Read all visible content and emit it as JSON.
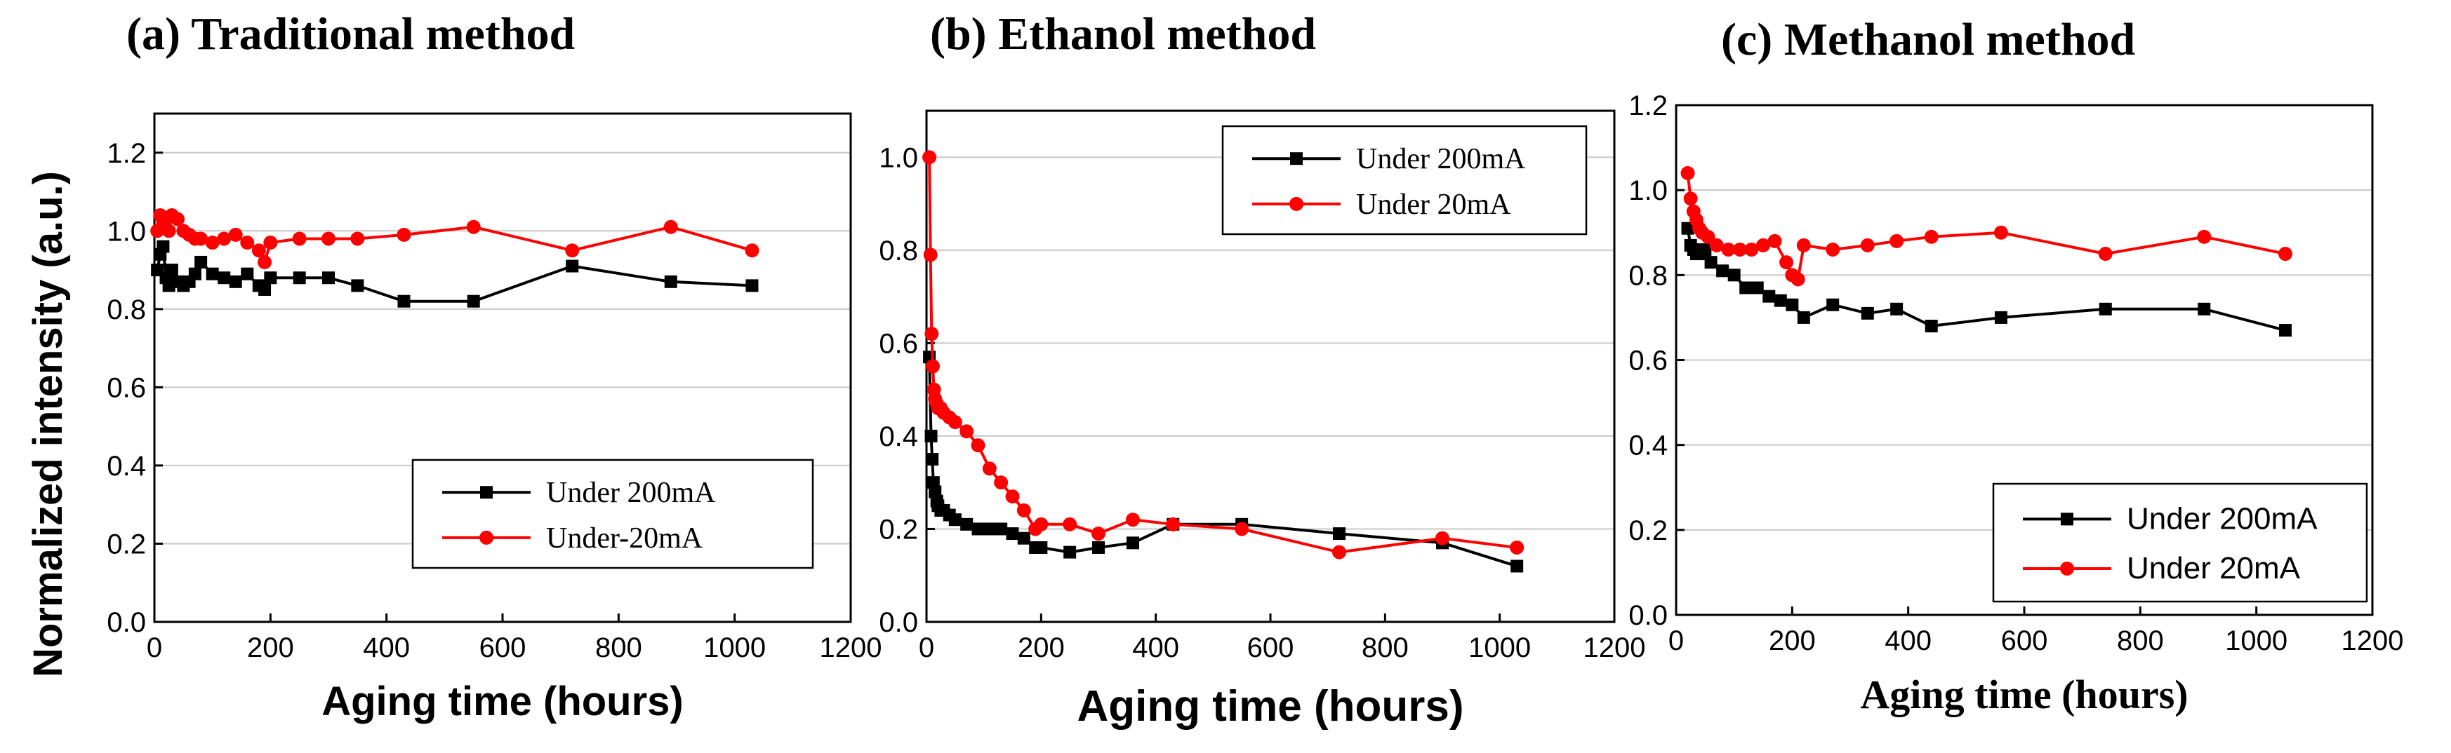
{
  "figure": {
    "ylabel": "Normalized intensity (a.u.)"
  },
  "colors": {
    "series_200": "#000000",
    "series_20": "#ff0000",
    "grid": "#c8c8c8",
    "axis": "#000000"
  },
  "chart_data": [
    {
      "type": "line",
      "title": "(a) Traditional method",
      "xlabel": "Aging time (hours)",
      "ylabel": "Normalized intensity (a.u.)",
      "xlim": [
        0,
        1200
      ],
      "ylim": [
        0,
        1.3
      ],
      "xticks": [
        0,
        200,
        400,
        600,
        800,
        1000,
        1200
      ],
      "yticks": [
        0.0,
        0.2,
        0.4,
        0.6,
        0.8,
        1.0,
        1.2
      ],
      "xtick_labels": [
        "0",
        "200",
        "400",
        "600",
        "800",
        "1000",
        "1200"
      ],
      "ytick_labels": [
        "0.0",
        "0.2",
        "0.4",
        "0.6",
        "0.8",
        "1.0",
        "1.2"
      ],
      "grid": "horizontal",
      "legend_position": "bottom-right",
      "series": [
        {
          "name": "Under 200mA",
          "marker": "square",
          "x": [
            5,
            10,
            15,
            20,
            25,
            30,
            40,
            50,
            60,
            70,
            80,
            100,
            120,
            140,
            160,
            180,
            190,
            200,
            250,
            300,
            350,
            430,
            550,
            720,
            890,
            1030
          ],
          "y": [
            0.9,
            0.94,
            0.96,
            0.88,
            0.86,
            0.9,
            0.87,
            0.86,
            0.87,
            0.89,
            0.92,
            0.89,
            0.88,
            0.87,
            0.89,
            0.86,
            0.85,
            0.88,
            0.88,
            0.88,
            0.86,
            0.82,
            0.82,
            0.91,
            0.87,
            0.86
          ]
        },
        {
          "name": "Under-20mA",
          "marker": "circle",
          "x": [
            5,
            10,
            15,
            20,
            25,
            30,
            40,
            50,
            60,
            70,
            80,
            100,
            120,
            140,
            160,
            180,
            190,
            200,
            250,
            300,
            350,
            430,
            550,
            720,
            890,
            1030
          ],
          "y": [
            1.0,
            1.04,
            1.02,
            1.03,
            1.0,
            1.04,
            1.03,
            1.0,
            0.99,
            0.98,
            0.98,
            0.97,
            0.98,
            0.99,
            0.97,
            0.95,
            0.92,
            0.97,
            0.98,
            0.98,
            0.98,
            0.99,
            1.01,
            0.95,
            1.01,
            0.95
          ]
        }
      ]
    },
    {
      "type": "line",
      "title": "(b) Ethanol method",
      "xlabel": "Aging time (hours)",
      "ylabel": "",
      "xlim": [
        0,
        1200
      ],
      "ylim": [
        0,
        1.1
      ],
      "xticks": [
        0,
        200,
        400,
        600,
        800,
        1000,
        1200
      ],
      "yticks": [
        0.0,
        0.2,
        0.4,
        0.6,
        0.8,
        1.0
      ],
      "xtick_labels": [
        "0",
        "200",
        "400",
        "600",
        "800",
        "1000",
        "1200"
      ],
      "ytick_labels": [
        "0.0",
        "0.2",
        "0.4",
        "0.6",
        "0.8",
        "1.0"
      ],
      "grid": "horizontal",
      "legend_position": "top-right",
      "series": [
        {
          "name": "Under 200mA",
          "marker": "square",
          "x": [
            5,
            8,
            10,
            12,
            15,
            18,
            20,
            25,
            30,
            40,
            50,
            70,
            90,
            110,
            130,
            150,
            170,
            190,
            200,
            250,
            300,
            360,
            430,
            550,
            720,
            900,
            1030
          ],
          "y": [
            0.57,
            0.4,
            0.35,
            0.3,
            0.28,
            0.26,
            0.25,
            0.24,
            0.24,
            0.23,
            0.22,
            0.21,
            0.2,
            0.2,
            0.2,
            0.19,
            0.18,
            0.16,
            0.16,
            0.15,
            0.16,
            0.17,
            0.21,
            0.21,
            0.19,
            0.17,
            0.12
          ]
        },
        {
          "name": "Under 20mA",
          "marker": "circle",
          "x": [
            5,
            7,
            9,
            11,
            13,
            15,
            18,
            20,
            25,
            30,
            40,
            50,
            70,
            90,
            110,
            130,
            150,
            170,
            190,
            200,
            250,
            300,
            360,
            430,
            550,
            720,
            900,
            1030
          ],
          "y": [
            1.0,
            0.79,
            0.62,
            0.55,
            0.5,
            0.48,
            0.47,
            0.46,
            0.46,
            0.45,
            0.44,
            0.43,
            0.41,
            0.38,
            0.33,
            0.3,
            0.27,
            0.24,
            0.2,
            0.21,
            0.21,
            0.19,
            0.22,
            0.21,
            0.2,
            0.15,
            0.18,
            0.16
          ]
        }
      ]
    },
    {
      "type": "line",
      "title": "(c) Methanol method",
      "xlabel": "Aging time (hours)",
      "ylabel": "",
      "xlim": [
        0,
        1200
      ],
      "ylim": [
        0,
        1.2
      ],
      "xticks": [
        0,
        200,
        400,
        600,
        800,
        1000,
        1200
      ],
      "yticks": [
        0.0,
        0.2,
        0.4,
        0.6,
        0.8,
        1.0,
        1.2
      ],
      "xtick_labels": [
        "0",
        "200",
        "400",
        "600",
        "800",
        "1000",
        "1200"
      ],
      "ytick_labels": [
        "0.0",
        "0.2",
        "0.4",
        "0.6",
        "0.8",
        "1.0",
        "1.2"
      ],
      "grid": "horizontal",
      "legend_position": "bottom-right",
      "series": [
        {
          "name": "Under 200mA",
          "marker": "square",
          "x": [
            20,
            25,
            30,
            35,
            40,
            50,
            60,
            80,
            100,
            120,
            140,
            160,
            180,
            200,
            220,
            270,
            330,
            380,
            440,
            560,
            740,
            910,
            1050
          ],
          "y": [
            0.91,
            0.87,
            0.86,
            0.85,
            0.85,
            0.86,
            0.83,
            0.81,
            0.8,
            0.77,
            0.77,
            0.75,
            0.74,
            0.73,
            0.7,
            0.73,
            0.71,
            0.72,
            0.68,
            0.7,
            0.72,
            0.72,
            0.67
          ]
        },
        {
          "name": "Under 20mA",
          "marker": "circle",
          "x": [
            20,
            25,
            30,
            35,
            40,
            45,
            55,
            70,
            90,
            110,
            130,
            150,
            170,
            190,
            200,
            210,
            220,
            270,
            330,
            380,
            440,
            560,
            740,
            910,
            1050
          ],
          "y": [
            1.04,
            0.98,
            0.95,
            0.93,
            0.91,
            0.9,
            0.89,
            0.87,
            0.86,
            0.86,
            0.86,
            0.87,
            0.88,
            0.83,
            0.8,
            0.79,
            0.87,
            0.86,
            0.87,
            0.88,
            0.89,
            0.9,
            0.85,
            0.89,
            0.85
          ]
        }
      ]
    }
  ]
}
